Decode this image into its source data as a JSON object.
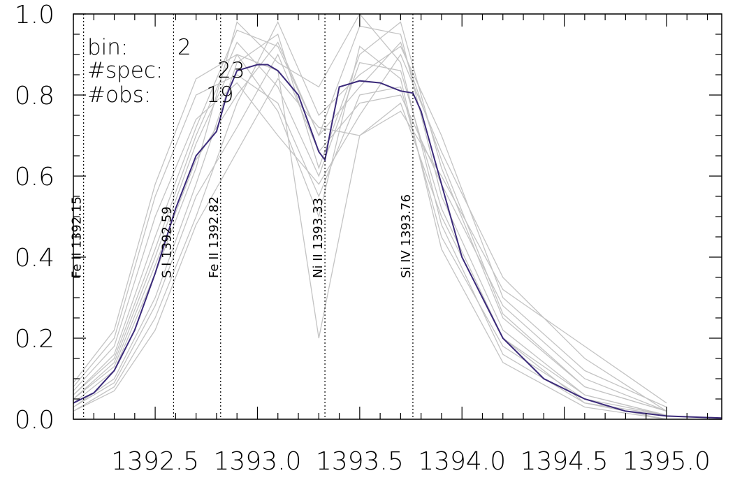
{
  "chart_data": {
    "type": "line",
    "title": "",
    "xlabel": "",
    "ylabel": "",
    "xlim": [
      1392.1,
      1395.27
    ],
    "ylim": [
      0.0,
      1.0
    ],
    "x_ticks": [
      1392.5,
      1393.0,
      1393.5,
      1394.0,
      1394.5,
      1395.0
    ],
    "x_tick_labels": [
      "1392.5",
      "1393.0",
      "1393.5",
      "1394.0",
      "1394.5",
      "1395.0"
    ],
    "y_ticks": [
      0.0,
      0.2,
      0.4,
      0.6,
      0.8,
      1.0
    ],
    "y_tick_labels": [
      "0.0",
      "0.2",
      "0.4",
      "0.6",
      "0.8",
      "1.0"
    ],
    "grid": false,
    "info": {
      "bin_label": "bin:",
      "bin_value": "2",
      "spec_label": "#spec:",
      "spec_value": "23",
      "obs_label": "#obs:",
      "obs_value": "19"
    },
    "reference_lines": [
      {
        "x": 1392.15,
        "label": "Fe II 1392.15"
      },
      {
        "x": 1392.59,
        "label": "S I 1392.59"
      },
      {
        "x": 1392.82,
        "label": "Fe II 1392.82"
      },
      {
        "x": 1393.33,
        "label": "Ni II 1393.33"
      },
      {
        "x": 1393.76,
        "label": "Si IV 1393.76"
      }
    ],
    "mean_color": "#3b2a7a",
    "individual_color": "#c4c4c4",
    "mean_series": {
      "x": [
        1392.1,
        1392.2,
        1392.3,
        1392.4,
        1392.5,
        1392.6,
        1392.7,
        1392.8,
        1392.85,
        1392.9,
        1393.0,
        1393.05,
        1393.1,
        1393.2,
        1393.3,
        1393.33,
        1393.36,
        1393.4,
        1393.5,
        1393.6,
        1393.7,
        1393.76,
        1393.8,
        1393.9,
        1394.0,
        1394.2,
        1394.4,
        1394.6,
        1394.8,
        1395.0,
        1395.27
      ],
      "y": [
        0.04,
        0.065,
        0.12,
        0.22,
        0.36,
        0.52,
        0.65,
        0.71,
        0.8,
        0.86,
        0.875,
        0.875,
        0.86,
        0.8,
        0.66,
        0.64,
        0.72,
        0.82,
        0.835,
        0.83,
        0.81,
        0.805,
        0.76,
        0.58,
        0.4,
        0.2,
        0.1,
        0.05,
        0.02,
        0.008,
        0.003
      ]
    },
    "individual_series": [
      {
        "x": [
          1392.1,
          1392.3,
          1392.5,
          1392.7,
          1392.9,
          1393.1,
          1393.3,
          1393.5,
          1393.7,
          1393.9,
          1394.2,
          1394.6,
          1395.0
        ],
        "y": [
          0.06,
          0.16,
          0.45,
          0.72,
          0.96,
          0.92,
          0.7,
          0.97,
          0.95,
          0.55,
          0.22,
          0.06,
          0.01
        ]
      },
      {
        "x": [
          1392.1,
          1392.3,
          1392.5,
          1392.7,
          1392.9,
          1393.1,
          1393.3,
          1393.5,
          1393.7,
          1393.9,
          1394.2,
          1394.6,
          1395.0
        ],
        "y": [
          0.03,
          0.1,
          0.3,
          0.58,
          0.88,
          0.95,
          0.62,
          0.9,
          0.98,
          0.62,
          0.25,
          0.08,
          0.02
        ]
      },
      {
        "x": [
          1392.1,
          1392.3,
          1392.5,
          1392.7,
          1392.9,
          1393.1,
          1393.3,
          1393.5,
          1393.7,
          1393.9,
          1394.2,
          1394.6,
          1395.0
        ],
        "y": [
          0.08,
          0.2,
          0.55,
          0.8,
          0.85,
          0.78,
          0.55,
          0.8,
          0.82,
          0.45,
          0.18,
          0.05,
          0.01
        ]
      },
      {
        "x": [
          1392.1,
          1392.3,
          1392.5,
          1392.7,
          1392.9,
          1393.1,
          1393.3,
          1393.5,
          1393.7,
          1393.9,
          1394.2,
          1394.6,
          1395.0
        ],
        "y": [
          0.02,
          0.08,
          0.25,
          0.5,
          0.78,
          0.98,
          0.75,
          0.85,
          0.92,
          0.7,
          0.3,
          0.12,
          0.03
        ]
      },
      {
        "x": [
          1392.1,
          1392.3,
          1392.5,
          1392.7,
          1392.9,
          1393.1,
          1393.3,
          1393.5,
          1393.7,
          1393.9,
          1394.2,
          1394.6,
          1395.0
        ],
        "y": [
          0.05,
          0.14,
          0.4,
          0.68,
          0.9,
          0.86,
          0.2,
          0.7,
          0.78,
          0.5,
          0.2,
          0.04,
          0.01
        ]
      },
      {
        "x": [
          1392.1,
          1392.3,
          1392.5,
          1392.7,
          1392.9,
          1393.1,
          1393.3,
          1393.5,
          1393.7,
          1393.9,
          1394.2,
          1394.6,
          1395.0
        ],
        "y": [
          0.07,
          0.18,
          0.5,
          0.74,
          0.83,
          0.7,
          0.58,
          0.75,
          0.9,
          0.66,
          0.35,
          0.15,
          0.02
        ]
      },
      {
        "x": [
          1392.1,
          1392.3,
          1392.5,
          1392.7,
          1392.9,
          1393.1,
          1393.3,
          1393.5,
          1393.7,
          1393.9,
          1394.2,
          1394.6,
          1395.0
        ],
        "y": [
          0.04,
          0.12,
          0.36,
          0.62,
          0.98,
          0.88,
          0.82,
          1.0,
          0.88,
          0.48,
          0.16,
          0.04,
          0.0
        ]
      },
      {
        "x": [
          1392.1,
          1392.3,
          1392.5,
          1392.7,
          1392.9,
          1393.1,
          1393.3,
          1393.5,
          1393.7,
          1393.9,
          1394.2,
          1394.6,
          1395.0
        ],
        "y": [
          0.03,
          0.09,
          0.28,
          0.55,
          0.72,
          0.9,
          0.66,
          0.78,
          0.8,
          0.58,
          0.28,
          0.1,
          0.02
        ]
      },
      {
        "x": [
          1392.1,
          1392.3,
          1392.5,
          1392.7,
          1392.9,
          1393.1,
          1393.3,
          1393.5,
          1393.7,
          1393.9,
          1394.2,
          1394.6,
          1395.0
        ],
        "y": [
          0.06,
          0.15,
          0.42,
          0.7,
          0.93,
          0.82,
          0.6,
          0.88,
          0.86,
          0.52,
          0.2,
          0.06,
          0.01
        ]
      },
      {
        "x": [
          1392.1,
          1392.3,
          1392.5,
          1392.7,
          1392.9,
          1393.1,
          1393.3,
          1393.5,
          1393.7,
          1393.9,
          1394.2,
          1394.6,
          1395.0
        ],
        "y": [
          0.05,
          0.13,
          0.38,
          0.64,
          0.8,
          0.93,
          0.7,
          0.82,
          0.93,
          0.64,
          0.26,
          0.08,
          0.02
        ]
      },
      {
        "x": [
          1392.1,
          1392.3,
          1392.5,
          1392.7,
          1392.9,
          1393.1,
          1393.3,
          1393.5,
          1393.7,
          1393.9,
          1394.2,
          1394.6,
          1395.0
        ],
        "y": [
          0.02,
          0.07,
          0.22,
          0.48,
          0.66,
          0.84,
          0.72,
          0.7,
          0.76,
          0.6,
          0.32,
          0.18,
          0.04
        ]
      },
      {
        "x": [
          1392.1,
          1392.3,
          1392.5,
          1392.7,
          1392.9,
          1393.1,
          1393.3,
          1393.5,
          1393.7,
          1393.9,
          1394.2,
          1394.6,
          1395.0
        ],
        "y": [
          0.09,
          0.22,
          0.58,
          0.84,
          0.9,
          0.76,
          0.5,
          0.92,
          0.84,
          0.42,
          0.14,
          0.03,
          0.0
        ]
      }
    ]
  }
}
